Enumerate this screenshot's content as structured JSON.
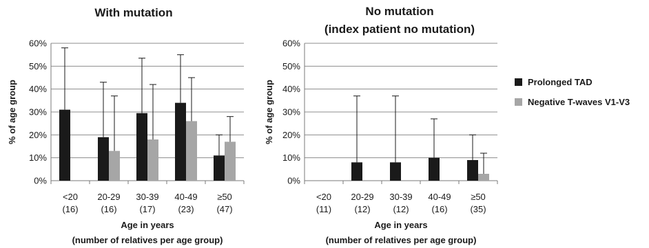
{
  "chart_data": [
    {
      "type": "bar",
      "title": "With mutation",
      "categories": [
        "<20",
        "20-29",
        "30-39",
        "40-49",
        "≥50"
      ],
      "category_counts": [
        "(16)",
        "(16)",
        "(17)",
        "(23)",
        "(47)"
      ],
      "series": [
        {
          "name": "Prolonged TAD",
          "color": "#1a1a1a",
          "values": [
            31,
            19,
            29.5,
            34,
            11
          ],
          "error_upper": [
            58,
            43,
            53.5,
            55,
            20
          ]
        },
        {
          "name": "Negative T-waves V1-V3",
          "color": "#a6a6a6",
          "values": [
            0,
            13,
            18,
            26,
            17
          ],
          "error_upper": [
            null,
            37,
            42,
            45,
            28
          ]
        }
      ],
      "xlabel": "Age in years",
      "xlabel2": "(number of relatives per age group)",
      "ylabel": "% of age group",
      "ylim": [
        0,
        60
      ],
      "yticks": [
        "0%",
        "10%",
        "20%",
        "30%",
        "40%",
        "50%",
        "60%"
      ],
      "grid": true
    },
    {
      "type": "bar",
      "title": "No mutation",
      "subtitle": "(index patient no mutation)",
      "categories": [
        "<20",
        "20-29",
        "30-39",
        "40-49",
        "≥50"
      ],
      "category_counts": [
        "(11)",
        "(12)",
        "(12)",
        "(16)",
        "(35)"
      ],
      "series": [
        {
          "name": "Prolonged TAD",
          "color": "#1a1a1a",
          "values": [
            0,
            8,
            8,
            10,
            9
          ],
          "error_upper": [
            null,
            37,
            37,
            27,
            20
          ]
        },
        {
          "name": "Negative T-waves V1-V3",
          "color": "#a6a6a6",
          "values": [
            0,
            0,
            0,
            0,
            3
          ],
          "error_upper": [
            null,
            null,
            null,
            null,
            12
          ]
        }
      ],
      "xlabel": "Age in years",
      "xlabel2": "(number of relatives per age group)",
      "ylabel": "% of age group",
      "ylim": [
        0,
        60
      ],
      "yticks": [
        "0%",
        "10%",
        "20%",
        "30%",
        "40%",
        "50%",
        "60%"
      ],
      "grid": true
    }
  ],
  "legend": {
    "placement": "right",
    "items": [
      {
        "label": "Prolonged TAD",
        "color": "#1a1a1a"
      },
      {
        "label": "Negative T-waves V1-V3",
        "color": "#a6a6a6"
      }
    ]
  }
}
